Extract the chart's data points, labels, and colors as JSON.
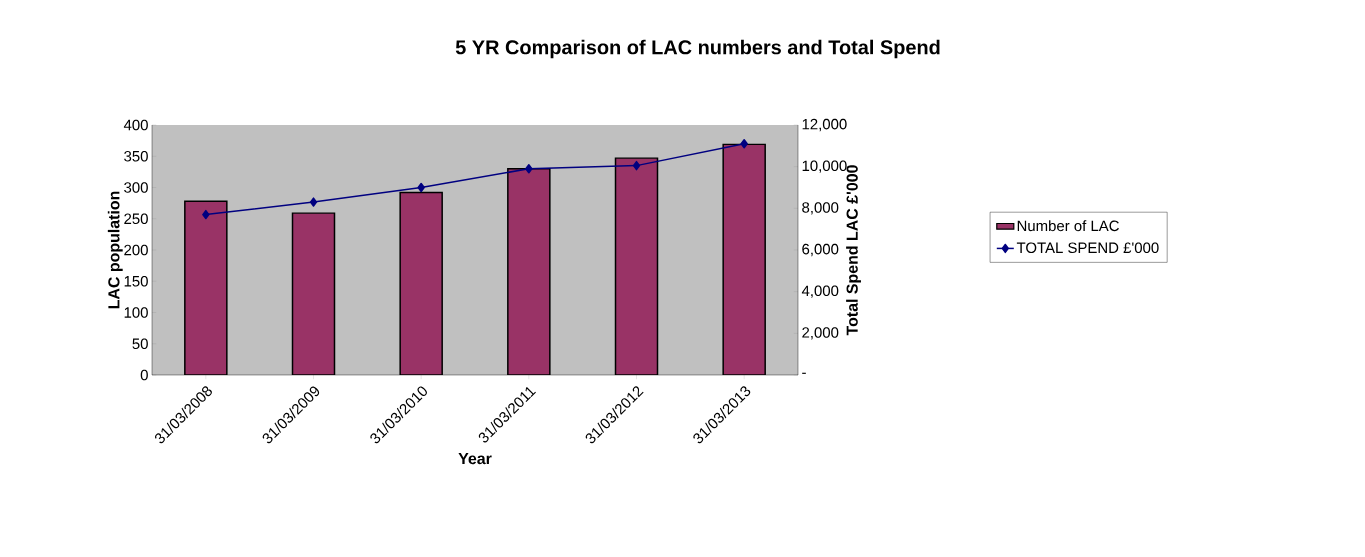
{
  "chart_data": {
    "type": "bar",
    "title": "5 YR Comparison of LAC numbers and Total Spend",
    "xlabel": "Year",
    "ylabel": "LAC population",
    "y2label": "Total Spend LAC £'000",
    "categories": [
      "31/03/2008",
      "31/03/2009",
      "31/03/2010",
      "31/03/2011",
      "31/03/2012",
      "31/03/2013"
    ],
    "series": [
      {
        "name": "Number of LAC",
        "color": "#993366",
        "values": [
          278,
          259,
          292,
          330,
          347,
          369
        ]
      },
      {
        "name": "TOTAL SPEND £'000",
        "type": "line",
        "axis": "y2",
        "color": "#000080",
        "marker": "diamond",
        "values": [
          7700,
          8300,
          9000,
          9900,
          10050,
          11100
        ]
      }
    ],
    "ylim": [
      0,
      400
    ],
    "yticks": [
      0,
      50,
      100,
      150,
      200,
      250,
      300,
      350,
      400
    ],
    "y2lim": [
      0,
      12000
    ],
    "y2ticks": [
      {
        "value": 0,
        "label": "-"
      },
      {
        "value": 2000,
        "label": "2,000"
      },
      {
        "value": 4000,
        "label": "4,000"
      },
      {
        "value": 6000,
        "label": "6,000"
      },
      {
        "value": 8000,
        "label": "8,000"
      },
      {
        "value": 10000,
        "label": "10,000"
      },
      {
        "value": 12000,
        "label": "12,000"
      }
    ],
    "legend": "right",
    "grid": false
  }
}
